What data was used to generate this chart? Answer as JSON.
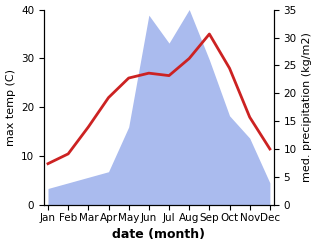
{
  "months": [
    "Jan",
    "Feb",
    "Mar",
    "Apr",
    "May",
    "Jun",
    "Jul",
    "Aug",
    "Sep",
    "Oct",
    "Nov",
    "Dec"
  ],
  "temp_max": [
    8.5,
    10.5,
    16.0,
    22.0,
    26.0,
    27.0,
    26.5,
    30.0,
    35.0,
    28.0,
    18.0,
    11.5
  ],
  "precipitation": [
    3.0,
    4.0,
    5.0,
    6.0,
    14.0,
    34.0,
    29.0,
    35.0,
    26.0,
    16.0,
    12.0,
    4.0
  ],
  "temp_color": "#cc2222",
  "precip_color": "#aabbee",
  "background_color": "#ffffff",
  "ylabel_left": "max temp (C)",
  "ylabel_right": "med. precipitation (kg/m2)",
  "xlabel": "date (month)",
  "ylim_left": [
    0,
    40
  ],
  "ylim_right": [
    0,
    35
  ],
  "temp_linewidth": 2.0,
  "xlabel_fontsize": 9,
  "ylabel_fontsize": 8,
  "tick_fontsize": 7.5,
  "xlabel_fontweight": "bold"
}
